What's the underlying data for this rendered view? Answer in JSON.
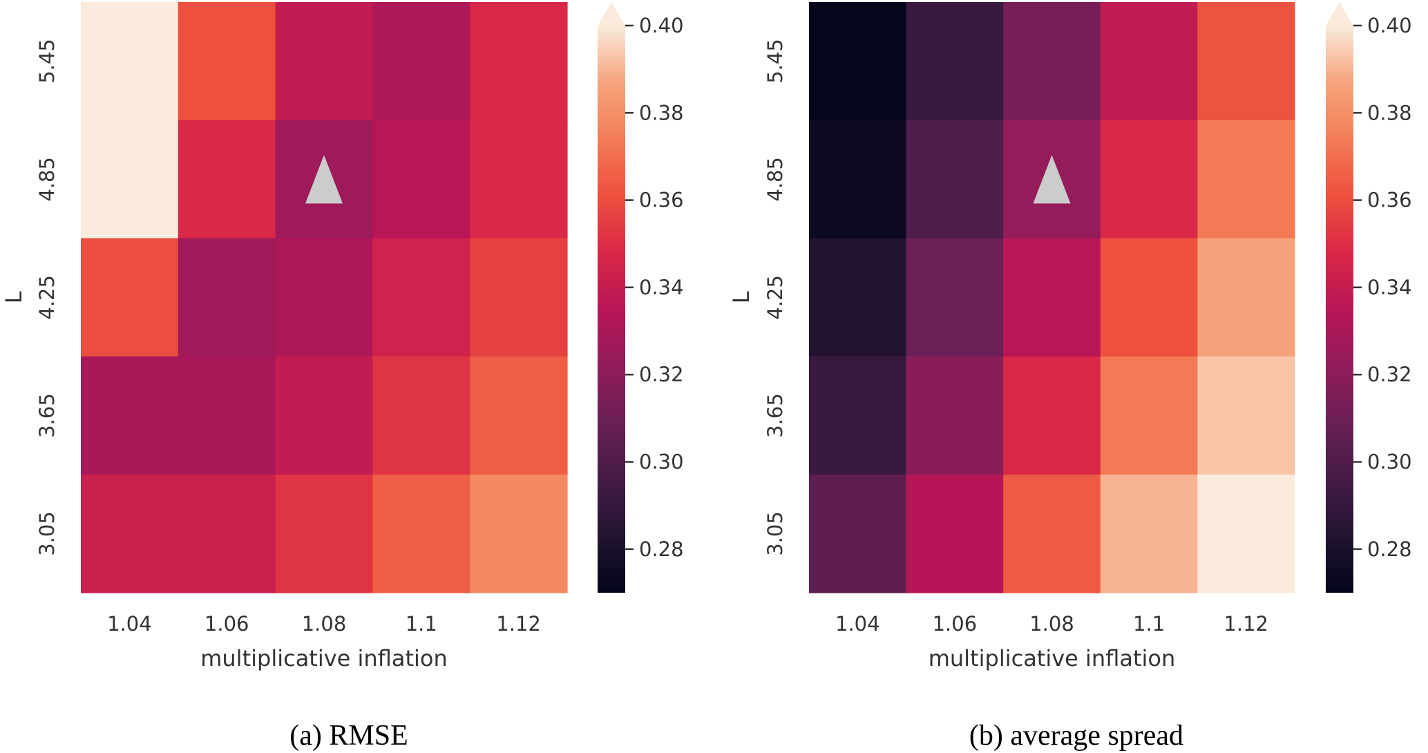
{
  "chart_data": [
    {
      "type": "heatmap",
      "title": "",
      "caption": "(a) RMSE",
      "xlabel": "multiplicative inflation",
      "ylabel": "L",
      "x_categories": [
        "1.04",
        "1.06",
        "1.08",
        "1.1",
        "1.12"
      ],
      "y_categories": [
        "5.45",
        "4.85",
        "4.25",
        "3.65",
        "3.05"
      ],
      "values": [
        [
          0.41,
          0.361,
          0.339,
          0.331,
          0.348
        ],
        [
          0.41,
          0.348,
          0.326,
          0.335,
          0.348
        ],
        [
          0.36,
          0.327,
          0.331,
          0.344,
          0.356
        ],
        [
          0.329,
          0.329,
          0.339,
          0.352,
          0.365
        ],
        [
          0.342,
          0.342,
          0.352,
          0.365,
          0.378
        ]
      ],
      "colormap": "rocket",
      "colorbar": {
        "vmin": 0.27,
        "vmax": 0.4,
        "extend": "max",
        "ticks": [
          0.28,
          0.3,
          0.32,
          0.34,
          0.36,
          0.38,
          0.4
        ],
        "tick_labels": [
          "0.28",
          "0.30",
          "0.32",
          "0.34",
          "0.36",
          "0.38",
          "0.40"
        ]
      },
      "marker": {
        "symbol": "triangle-up",
        "x": "1.08",
        "y": "4.85",
        "color": "#cccccc"
      },
      "grid": false
    },
    {
      "type": "heatmap",
      "title": "",
      "caption": "(b) average spread",
      "xlabel": "multiplicative inflation",
      "ylabel": "L",
      "x_categories": [
        "1.04",
        "1.06",
        "1.08",
        "1.1",
        "1.12"
      ],
      "y_categories": [
        "5.45",
        "4.85",
        "4.25",
        "3.65",
        "3.05"
      ],
      "values": [
        [
          0.271,
          0.292,
          0.314,
          0.339,
          0.362
        ],
        [
          0.274,
          0.3,
          0.323,
          0.348,
          0.373
        ],
        [
          0.283,
          0.309,
          0.335,
          0.361,
          0.386
        ],
        [
          0.292,
          0.319,
          0.348,
          0.373,
          0.393
        ],
        [
          0.305,
          0.334,
          0.364,
          0.39,
          0.4
        ]
      ],
      "colormap": "rocket",
      "colorbar": {
        "vmin": 0.27,
        "vmax": 0.4,
        "extend": "max",
        "ticks": [
          0.28,
          0.3,
          0.32,
          0.34,
          0.36,
          0.38,
          0.4
        ],
        "tick_labels": [
          "0.28",
          "0.30",
          "0.32",
          "0.34",
          "0.36",
          "0.38",
          "0.40"
        ]
      },
      "marker": {
        "symbol": "triangle-up",
        "x": "1.08",
        "y": "4.85",
        "color": "#cccccc"
      },
      "grid": false
    }
  ],
  "colormap_stops": [
    "#03051a",
    "#221331",
    "#451c47",
    "#6a1f56",
    "#921c5b",
    "#b91657",
    "#d92847",
    "#ed503e",
    "#f47d57",
    "#f6a47c",
    "#faebdd"
  ]
}
